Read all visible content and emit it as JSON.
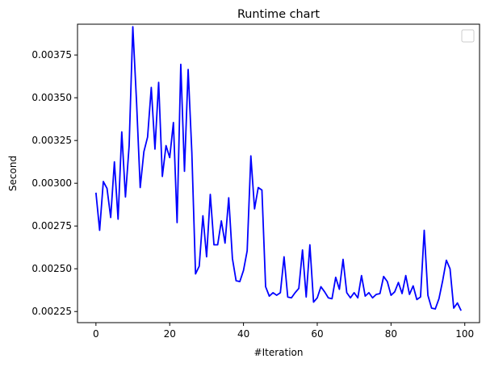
{
  "chart_data": {
    "type": "line",
    "title": "Runtime chart",
    "xlabel": "#Iteration",
    "ylabel": "Second",
    "xlim": [
      -5,
      104
    ],
    "ylim": [
      0.002185,
      0.00393
    ],
    "xticks": [
      0,
      20,
      40,
      60,
      80,
      100
    ],
    "xtick_labels": [
      "0",
      "20",
      "40",
      "60",
      "80",
      "100"
    ],
    "yticks": [
      0.00225,
      0.0025,
      0.00275,
      0.003,
      0.00325,
      0.0035,
      0.00375
    ],
    "ytick_labels": [
      "0.00225",
      "0.00250",
      "0.00275",
      "0.00300",
      "0.00325",
      "0.00350",
      "0.00375"
    ],
    "grid": false,
    "legend": "top-right, empty",
    "series": [
      {
        "color": "#0000ff",
        "x": [
          0,
          1,
          2,
          3,
          4,
          5,
          6,
          7,
          8,
          9,
          10,
          11,
          12,
          13,
          14,
          15,
          16,
          17,
          18,
          19,
          20,
          21,
          22,
          23,
          24,
          25,
          26,
          27,
          28,
          29,
          30,
          31,
          32,
          33,
          34,
          35,
          36,
          37,
          38,
          39,
          40,
          41,
          42,
          43,
          44,
          45,
          46,
          47,
          48,
          49,
          50,
          51,
          52,
          53,
          54,
          55,
          56,
          57,
          58,
          59,
          60,
          61,
          62,
          63,
          64,
          65,
          66,
          67,
          68,
          69,
          70,
          71,
          72,
          73,
          74,
          75,
          76,
          77,
          78,
          79,
          80,
          81,
          82,
          83,
          84,
          85,
          86,
          87,
          88,
          89,
          90,
          91,
          92,
          93,
          94,
          95,
          96,
          97,
          98,
          99
        ],
        "values": [
          0.002945,
          0.002725,
          0.00301,
          0.00297,
          0.0028,
          0.003125,
          0.00279,
          0.0033,
          0.00292,
          0.00322,
          0.003915,
          0.00348,
          0.002975,
          0.003185,
          0.00327,
          0.00356,
          0.0032,
          0.00359,
          0.00304,
          0.00322,
          0.00315,
          0.003355,
          0.00277,
          0.003695,
          0.00307,
          0.003665,
          0.00318,
          0.00247,
          0.002515,
          0.00281,
          0.00257,
          0.002935,
          0.00264,
          0.00264,
          0.00278,
          0.00265,
          0.002915,
          0.00256,
          0.00243,
          0.002425,
          0.00249,
          0.002605,
          0.00316,
          0.00285,
          0.002975,
          0.00296,
          0.002395,
          0.00234,
          0.00236,
          0.002345,
          0.00236,
          0.00257,
          0.002335,
          0.00233,
          0.00236,
          0.002385,
          0.00261,
          0.002335,
          0.00264,
          0.002305,
          0.00233,
          0.002395,
          0.002365,
          0.00233,
          0.002325,
          0.00245,
          0.00238,
          0.002555,
          0.00236,
          0.00233,
          0.00236,
          0.00233,
          0.00246,
          0.00234,
          0.00236,
          0.00233,
          0.00235,
          0.002355,
          0.002455,
          0.002425,
          0.002345,
          0.002365,
          0.00242,
          0.002355,
          0.00246,
          0.00235,
          0.0024,
          0.00232,
          0.002335,
          0.002725,
          0.002345,
          0.00227,
          0.002265,
          0.002325,
          0.00243,
          0.00255,
          0.0025,
          0.00227,
          0.0023,
          0.002255
        ]
      }
    ]
  }
}
